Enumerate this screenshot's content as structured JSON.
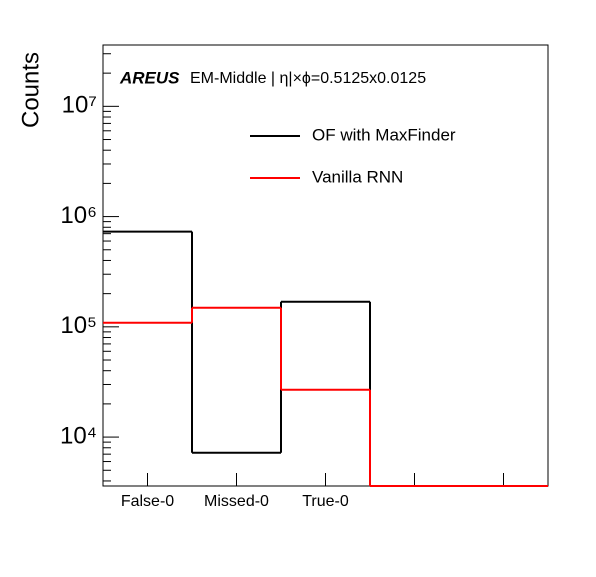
{
  "chart_data": {
    "type": "step",
    "ylabel": "Counts",
    "label_bold": "AREUS",
    "title": "EM-Middle | η|×ϕ=0.5125x0.0125",
    "categories": [
      "False-0",
      "Missed-0",
      "True-0",
      null,
      null
    ],
    "log_y": true,
    "ylim": [
      3600,
      36000000
    ],
    "yticks": [
      {
        "value": 10000,
        "label": "10⁴"
      },
      {
        "value": 100000,
        "label": "10⁵"
      },
      {
        "value": 1000000,
        "label": "10⁶"
      },
      {
        "value": 10000000,
        "label": "10⁷"
      }
    ],
    "legend": "top right",
    "series": [
      {
        "name": "OF with MaxFinder",
        "color": "#000000",
        "values": [
          730000,
          7200,
          169000,
          0,
          0
        ]
      },
      {
        "name": "Vanilla RNN",
        "color": "#ff0000",
        "values": [
          109000,
          149000,
          26900,
          0,
          0
        ]
      }
    ]
  }
}
